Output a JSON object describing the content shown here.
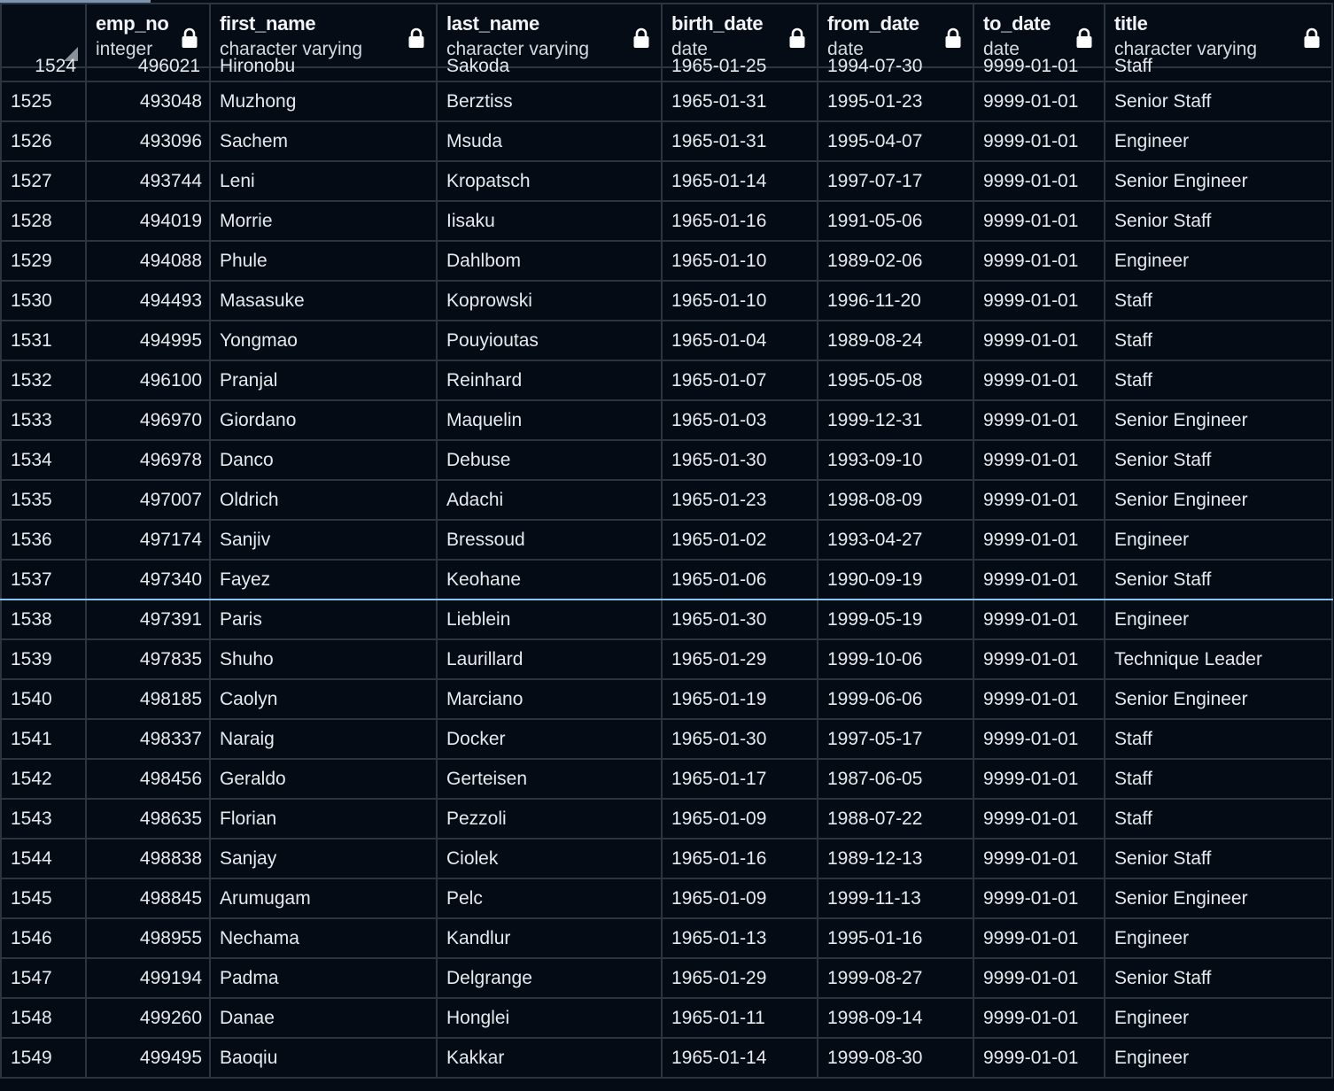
{
  "columns": [
    {
      "name": "",
      "type": ""
    },
    {
      "name": "emp_no",
      "type": "integer"
    },
    {
      "name": "first_name",
      "type": "character varying"
    },
    {
      "name": "last_name",
      "type": "character varying"
    },
    {
      "name": "birth_date",
      "type": "date"
    },
    {
      "name": "from_date",
      "type": "date"
    },
    {
      "name": "to_date",
      "type": "date"
    },
    {
      "name": "title",
      "type": "character varying"
    }
  ],
  "clipped_row": [
    "1524",
    "496021",
    "Hironobu",
    "Sakoda",
    "1965-01-25",
    "1994-07-30",
    "9999-01-01",
    "Staff"
  ],
  "rows": [
    [
      "1525",
      "493048",
      "Muzhong",
      "Berztiss",
      "1965-01-31",
      "1995-01-23",
      "9999-01-01",
      "Senior Staff"
    ],
    [
      "1526",
      "493096",
      "Sachem",
      "Msuda",
      "1965-01-31",
      "1995-04-07",
      "9999-01-01",
      "Engineer"
    ],
    [
      "1527",
      "493744",
      "Leni",
      "Kropatsch",
      "1965-01-14",
      "1997-07-17",
      "9999-01-01",
      "Senior Engineer"
    ],
    [
      "1528",
      "494019",
      "Morrie",
      "Iisaku",
      "1965-01-16",
      "1991-05-06",
      "9999-01-01",
      "Senior Staff"
    ],
    [
      "1529",
      "494088",
      "Phule",
      "Dahlbom",
      "1965-01-10",
      "1989-02-06",
      "9999-01-01",
      "Engineer"
    ],
    [
      "1530",
      "494493",
      "Masasuke",
      "Koprowski",
      "1965-01-10",
      "1996-11-20",
      "9999-01-01",
      "Staff"
    ],
    [
      "1531",
      "494995",
      "Yongmao",
      "Pouyioutas",
      "1965-01-04",
      "1989-08-24",
      "9999-01-01",
      "Staff"
    ],
    [
      "1532",
      "496100",
      "Pranjal",
      "Reinhard",
      "1965-01-07",
      "1995-05-08",
      "9999-01-01",
      "Staff"
    ],
    [
      "1533",
      "496970",
      "Giordano",
      "Maquelin",
      "1965-01-03",
      "1999-12-31",
      "9999-01-01",
      "Senior Engineer"
    ],
    [
      "1534",
      "496978",
      "Danco",
      "Debuse",
      "1965-01-30",
      "1993-09-10",
      "9999-01-01",
      "Senior Staff"
    ],
    [
      "1535",
      "497007",
      "Oldrich",
      "Adachi",
      "1965-01-23",
      "1998-08-09",
      "9999-01-01",
      "Senior Engineer"
    ],
    [
      "1536",
      "497174",
      "Sanjiv",
      "Bressoud",
      "1965-01-02",
      "1993-04-27",
      "9999-01-01",
      "Engineer"
    ],
    [
      "1537",
      "497340",
      "Fayez",
      "Keohane",
      "1965-01-06",
      "1990-09-19",
      "9999-01-01",
      "Senior Staff"
    ],
    [
      "1538",
      "497391",
      "Paris",
      "Lieblein",
      "1965-01-30",
      "1999-05-19",
      "9999-01-01",
      "Engineer"
    ],
    [
      "1539",
      "497835",
      "Shuho",
      "Laurillard",
      "1965-01-29",
      "1999-10-06",
      "9999-01-01",
      "Technique Leader"
    ],
    [
      "1540",
      "498185",
      "Caolyn",
      "Marciano",
      "1965-01-19",
      "1999-06-06",
      "9999-01-01",
      "Senior Engineer"
    ],
    [
      "1541",
      "498337",
      "Naraig",
      "Docker",
      "1965-01-30",
      "1997-05-17",
      "9999-01-01",
      "Staff"
    ],
    [
      "1542",
      "498456",
      "Geraldo",
      "Gerteisen",
      "1965-01-17",
      "1987-06-05",
      "9999-01-01",
      "Staff"
    ],
    [
      "1543",
      "498635",
      "Florian",
      "Pezzoli",
      "1965-01-09",
      "1988-07-22",
      "9999-01-01",
      "Staff"
    ],
    [
      "1544",
      "498838",
      "Sanjay",
      "Ciolek",
      "1965-01-16",
      "1989-12-13",
      "9999-01-01",
      "Senior Staff"
    ],
    [
      "1545",
      "498845",
      "Arumugam",
      "Pelc",
      "1965-01-09",
      "1999-11-13",
      "9999-01-01",
      "Senior Engineer"
    ],
    [
      "1546",
      "498955",
      "Nechama",
      "Kandlur",
      "1965-01-13",
      "1995-01-16",
      "9999-01-01",
      "Engineer"
    ],
    [
      "1547",
      "499194",
      "Padma",
      "Delgrange",
      "1965-01-29",
      "1999-08-27",
      "9999-01-01",
      "Senior Staff"
    ],
    [
      "1548",
      "499260",
      "Danae",
      "Honglei",
      "1965-01-11",
      "1998-09-14",
      "9999-01-01",
      "Engineer"
    ],
    [
      "1549",
      "499495",
      "Baoqiu",
      "Kakkar",
      "1965-01-14",
      "1999-08-30",
      "9999-01-01",
      "Engineer"
    ]
  ],
  "selected_row": "1537",
  "colors": {
    "background": "#050b14",
    "grid_line": "#2c3440",
    "selection_border": "#8ec1e8",
    "scroll_indicator": "#7f93ad"
  },
  "icons": {
    "header_lock": "lock-icon",
    "corner": "resize-corner-icon"
  }
}
